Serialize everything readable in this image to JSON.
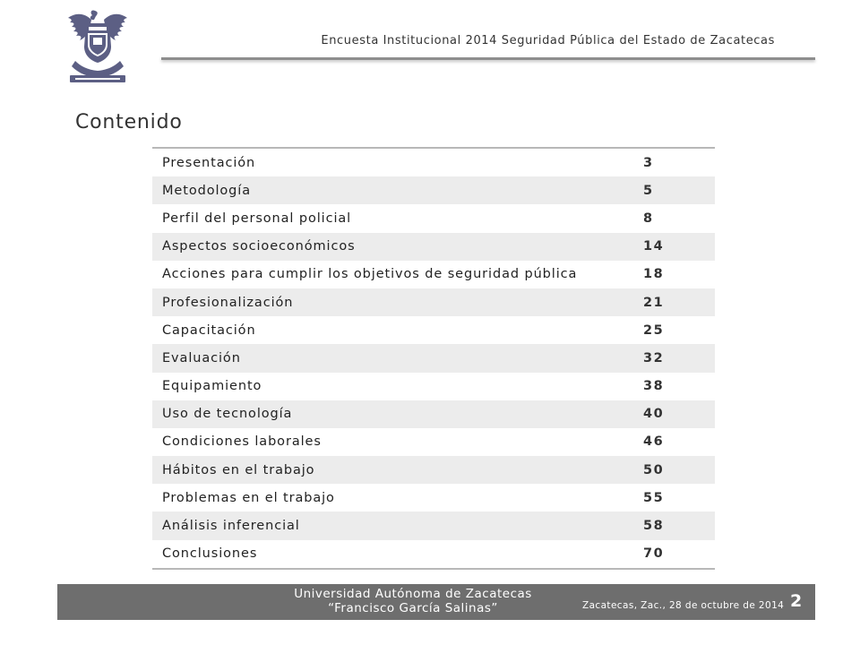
{
  "header": {
    "title": "Encuesta Institucional 2014 Seguridad Pública del Estado de Zacatecas",
    "logo_icon": "university-eagle-seal-icon"
  },
  "section_title": "Contenido",
  "toc": [
    {
      "title": "Presentación",
      "page": "3"
    },
    {
      "title": "Metodología",
      "page": "5"
    },
    {
      "title": "Perfil del personal policial",
      "page": "8"
    },
    {
      "title": "Aspectos socioeconómicos",
      "page": "14"
    },
    {
      "title": "Acciones para cumplir los objetivos de seguridad pública",
      "page": "18"
    },
    {
      "title": "Profesionalización",
      "page": "21"
    },
    {
      "title": "Capacitación",
      "page": "25"
    },
    {
      "title": "Evaluación",
      "page": "32"
    },
    {
      "title": "Equipamiento",
      "page": "38"
    },
    {
      "title": "Uso de tecnología",
      "page": "40"
    },
    {
      "title": "Condiciones laborales",
      "page": "46"
    },
    {
      "title": "Hábitos en el trabajo",
      "page": "50"
    },
    {
      "title": "Problemas en el trabajo",
      "page": "55"
    },
    {
      "title": "Análisis inferencial",
      "page": "58"
    },
    {
      "title": "Conclusiones",
      "page": "70"
    }
  ],
  "footer": {
    "university_line1": "Universidad Autónoma de Zacatecas",
    "university_line2": "“Francisco García Salinas”",
    "date": "Zacatecas, Zac., 28 de octubre de 2014",
    "page_number": "2"
  },
  "colors": {
    "logo": "#5c5f84",
    "footer_bg": "#6e6e6e",
    "row_stripe": "#ececec",
    "rule": "#8e8e8e"
  }
}
